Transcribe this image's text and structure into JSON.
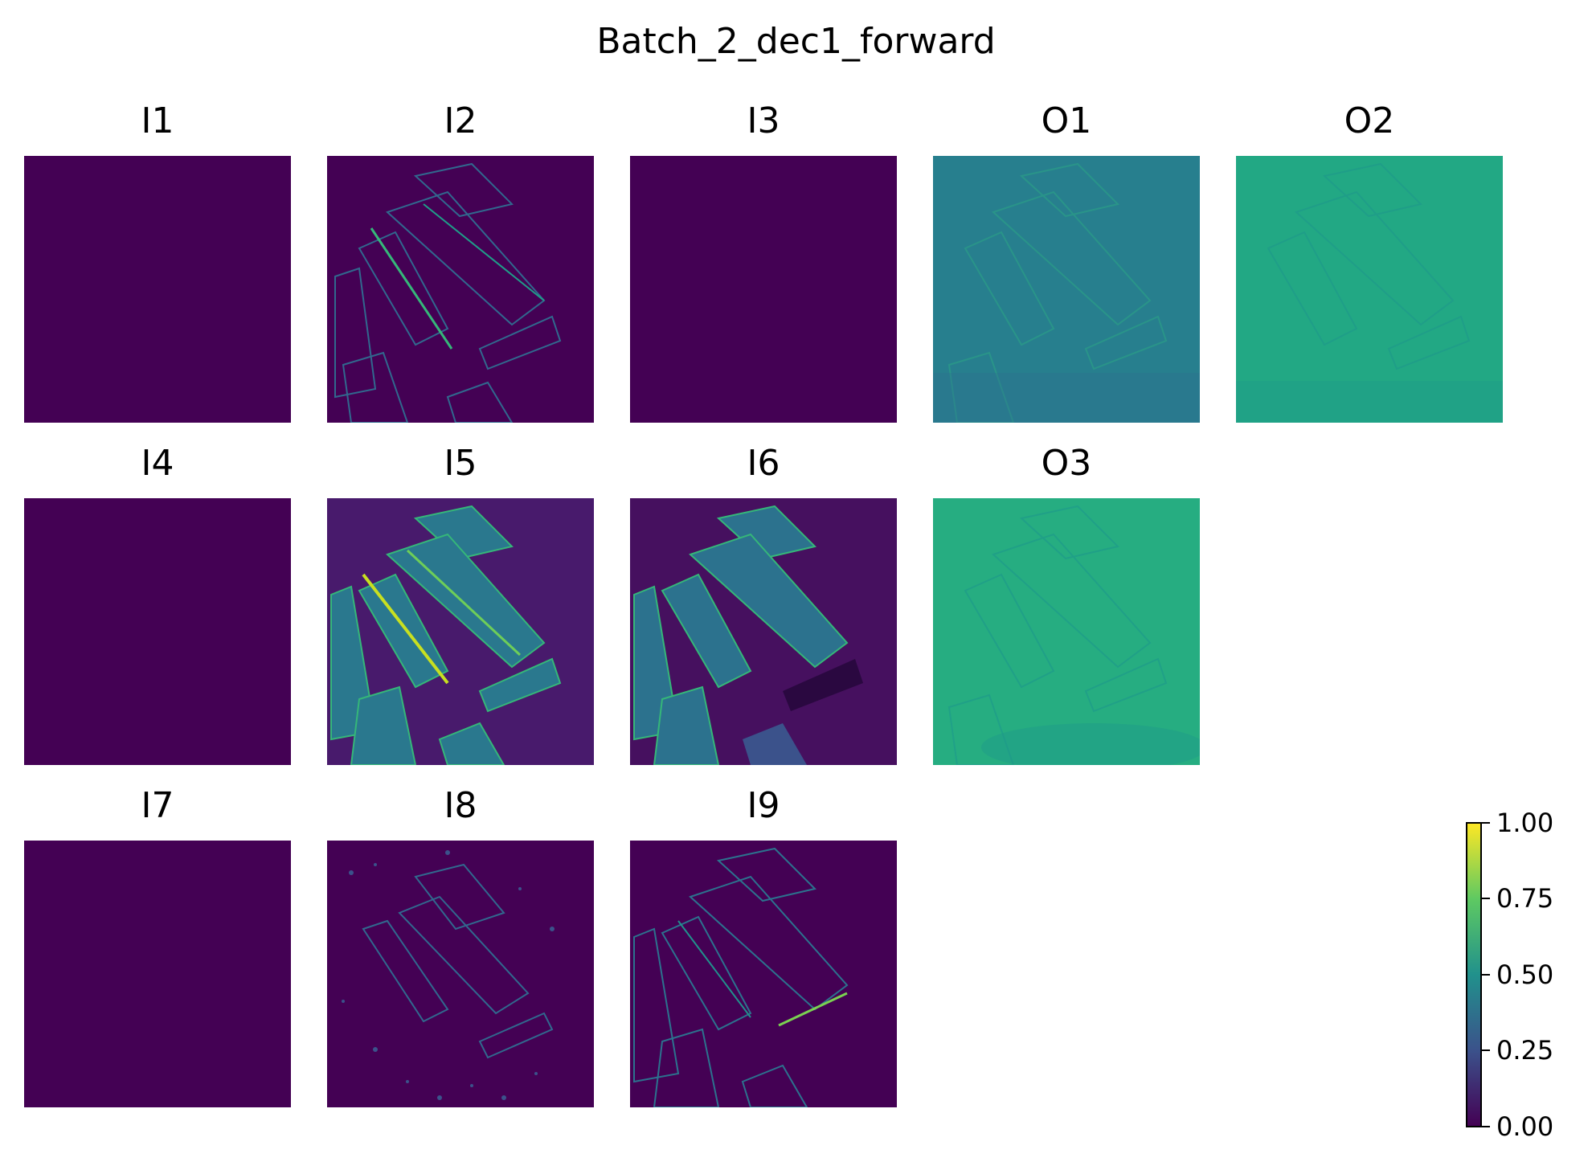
{
  "chart_data": {
    "type": "heatmap",
    "title": "Batch_2_dec1_forward",
    "panels": [
      {
        "label": "I1",
        "mean_value": 0.0
      },
      {
        "label": "I2",
        "mean_value": 0.05
      },
      {
        "label": "I3",
        "mean_value": 0.0
      },
      {
        "label": "O1",
        "mean_value": 0.49
      },
      {
        "label": "O2",
        "mean_value": 0.65
      },
      {
        "label": "I4",
        "mean_value": 0.0
      },
      {
        "label": "I5",
        "mean_value": 0.12
      },
      {
        "label": "I6",
        "mean_value": 0.06
      },
      {
        "label": "O3",
        "mean_value": 0.66
      },
      {
        "label": "I7",
        "mean_value": 0.0
      },
      {
        "label": "I8",
        "mean_value": 0.02
      },
      {
        "label": "I9",
        "mean_value": 0.04
      }
    ],
    "colorbar": {
      "colormap": "viridis",
      "range": [
        0.0,
        1.0
      ],
      "tick_labels": [
        "0.00",
        "0.25",
        "0.50",
        "0.75",
        "1.00"
      ]
    },
    "axes": "off",
    "grid": false
  }
}
